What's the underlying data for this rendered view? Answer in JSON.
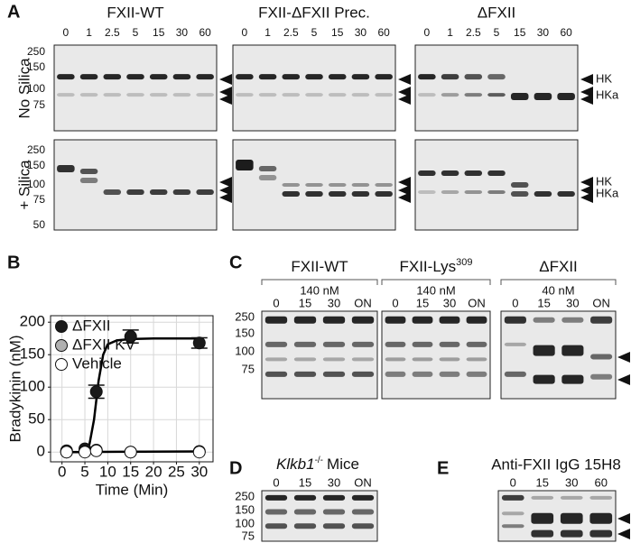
{
  "panel_a": {
    "label": "A",
    "row_labels": [
      "No Silica",
      "+ Silica"
    ],
    "blots": [
      {
        "title": "FXII-WT",
        "times": [
          "0",
          "1",
          "2.5",
          "5",
          "15",
          "30",
          "60"
        ]
      },
      {
        "title": "FXII-ΔFXII Prec.",
        "times": [
          "0",
          "1",
          "2.5",
          "5",
          "15",
          "30",
          "60"
        ]
      },
      {
        "title": "ΔFXII",
        "times": [
          "0",
          "1",
          "2.5",
          "5",
          "15",
          "30",
          "60"
        ]
      }
    ],
    "mw_top": [
      "250",
      "150",
      "100",
      "75"
    ],
    "mw_bottom": [
      "250",
      "150",
      "100",
      "75",
      "50"
    ],
    "markers": [
      "HK",
      "HKa"
    ]
  },
  "chart_data": {
    "type": "scatter",
    "label": "B",
    "xlabel": "Time (Min)",
    "ylabel": "Bradykinin (nM)",
    "xlim": [
      -2.5,
      33
    ],
    "ylim": [
      -15,
      210
    ],
    "xticks": [
      0,
      5,
      10,
      15,
      20,
      25,
      30
    ],
    "yticks": [
      0,
      50,
      100,
      150,
      200
    ],
    "grid": true,
    "legend": "upper left",
    "series": [
      {
        "name": "ΔFXII",
        "color": "#1a1a1a",
        "x": [
          1,
          5,
          7.5,
          15,
          30
        ],
        "values": [
          2,
          5,
          93,
          178,
          168
        ],
        "errors": [
          null,
          null,
          10,
          10,
          8
        ]
      },
      {
        "name": "ΔFXII KV",
        "color": "#b0b0b0",
        "x": [
          1,
          5,
          7.5,
          15,
          30
        ],
        "values": [
          0,
          1,
          3,
          0,
          1
        ],
        "errors": [
          null,
          null,
          null,
          null,
          null
        ]
      },
      {
        "name": "Vehicle",
        "color": "#ffffff",
        "x": [
          1,
          5,
          7.5,
          15,
          30
        ],
        "values": [
          0,
          0,
          2,
          0,
          0
        ],
        "errors": [
          null,
          null,
          null,
          null,
          null
        ]
      }
    ],
    "fits": [
      {
        "color": "#000000",
        "x": [
          0,
          4,
          5,
          6,
          7,
          8,
          9,
          10,
          12,
          15,
          20,
          30
        ],
        "values": [
          0,
          0,
          2,
          12,
          50,
          110,
          150,
          166,
          172,
          174,
          175,
          175
        ]
      },
      {
        "color": "#000000",
        "x": [
          0,
          30
        ],
        "values": [
          0,
          1
        ]
      }
    ]
  },
  "panel_c": {
    "label": "C",
    "times": [
      "0",
      "15",
      "30",
      "ON"
    ],
    "mw": [
      "250",
      "150",
      "100",
      "75"
    ],
    "groups": [
      {
        "title": "FXII-WT",
        "conc": "140 nM"
      },
      {
        "title": "FXII-Lys",
        "title_sup": "309",
        "conc": "140 nM"
      },
      {
        "title": "ΔFXII",
        "conc": "40 nM"
      }
    ]
  },
  "panel_d": {
    "label": "D",
    "title": "Klkb1",
    "title_sup": "-/-",
    "title_suffix": "Mice",
    "times": [
      "0",
      "15",
      "30",
      "ON"
    ],
    "mw": [
      "250",
      "150",
      "100",
      "75"
    ]
  },
  "panel_e": {
    "label": "E",
    "title": "Anti-FXII IgG 15H8",
    "times": [
      "0",
      "15",
      "30",
      "60"
    ]
  }
}
